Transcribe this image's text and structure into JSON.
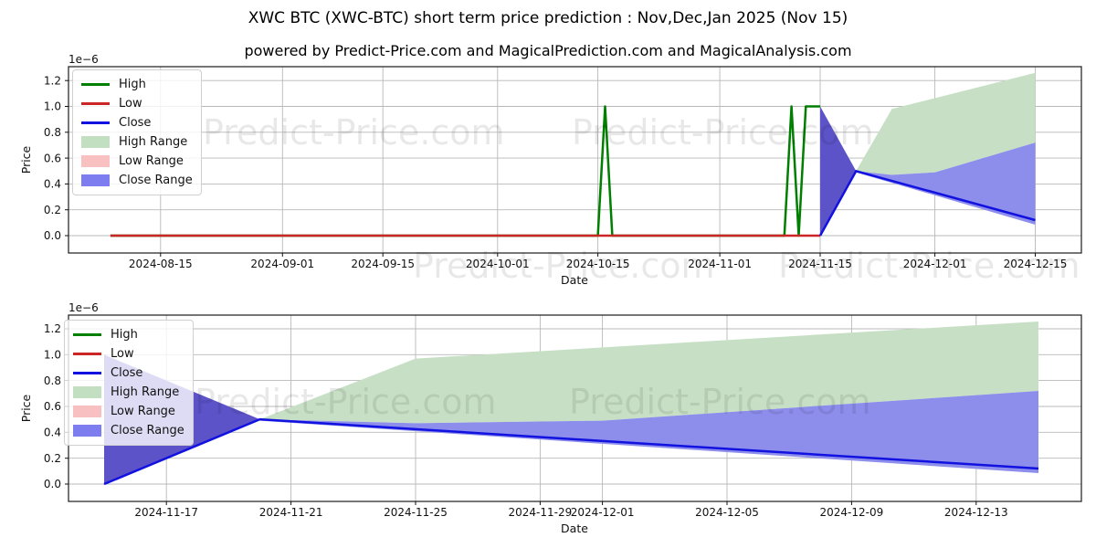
{
  "header": {
    "title": "XWC BTC (XWC-BTC) short term price prediction : Nov,Dec,Jan 2025 (Nov 15)",
    "subtitle": "powered by Predict-Price.com and MagicalPrediction.com and MagicalAnalysis.com"
  },
  "watermark_text": "Predict-Price.com",
  "colors": {
    "high_line": "#007f00",
    "low_line": "#cc2525",
    "close_line": "#1212e0",
    "high_range_fill": "#c7e0c5",
    "close_range_fill": "#8d8dec",
    "close_range_converge_fill": "#5c53c9",
    "grid": "#b8b8b8",
    "axis": "#1a1a1a"
  },
  "chart_data": [
    {
      "type": "line",
      "xlabel": "Date",
      "ylabel": "Price",
      "scale_note": "1e−6",
      "ylim": [
        0,
        1.26
      ],
      "grid": true,
      "legend_position": "upper left",
      "ytick_labels": [
        "0.0",
        "0.2",
        "0.4",
        "0.6",
        "0.8",
        "1.0",
        "1.2"
      ],
      "xtick_dates": [
        "2024-08-15",
        "2024-09-01",
        "2024-09-15",
        "2024-10-01",
        "2024-10-15",
        "2024-11-01",
        "2024-11-15",
        "2024-12-01",
        "2024-12-15"
      ],
      "legend": [
        {
          "label": "High",
          "swatch": "line",
          "color": "#007f00"
        },
        {
          "label": "Low",
          "swatch": "line",
          "color": "#cc2525"
        },
        {
          "label": "Close",
          "swatch": "line",
          "color": "#1212e0"
        },
        {
          "label": "High Range",
          "swatch": "patch",
          "color": "#c2dfc2"
        },
        {
          "label": "Low Range",
          "swatch": "patch",
          "color": "#f8c0c0"
        },
        {
          "label": "Close Range",
          "swatch": "patch",
          "color": "#7d7df0"
        }
      ],
      "series": {
        "bands": [
          {
            "name": "High Range",
            "fill": "#c7e0c5",
            "upper": [
              [
                "2024-11-20",
                0.5
              ],
              [
                "2024-11-25",
                0.98
              ],
              [
                "2024-12-15",
                1.26
              ]
            ],
            "lower": [
              [
                "2024-11-20",
                0.5
              ],
              [
                "2024-11-25",
                0.47
              ],
              [
                "2024-12-01",
                0.49
              ],
              [
                "2024-12-15",
                0.72
              ]
            ]
          },
          {
            "name": "Close Range",
            "fill": "#8d8dec",
            "upper": [
              [
                "2024-11-20",
                0.5
              ],
              [
                "2024-11-25",
                0.47
              ],
              [
                "2024-12-01",
                0.49
              ],
              [
                "2024-12-15",
                0.72
              ]
            ],
            "lower": [
              [
                "2024-11-20",
                0.49
              ],
              [
                "2024-12-15",
                0.085
              ]
            ]
          }
        ],
        "polygons": [
          {
            "name": "Close Range convergence",
            "fill": "#5c53c9",
            "points": [
              [
                "2024-11-15",
                1.0
              ],
              [
                "2024-11-20",
                0.5
              ],
              [
                "2024-11-15",
                0.0
              ]
            ]
          }
        ],
        "lines": [
          {
            "name": "High",
            "color": "#007f00",
            "points": [
              [
                "2024-08-08",
                0
              ],
              [
                "2024-10-15",
                0
              ],
              [
                "2024-10-16",
                1.0
              ],
              [
                "2024-10-17",
                0
              ],
              [
                "2024-11-10",
                0
              ],
              [
                "2024-11-11",
                1.0
              ],
              [
                "2024-11-12",
                0
              ],
              [
                "2024-11-13",
                1.0
              ],
              [
                "2024-11-15",
                1.0
              ]
            ]
          },
          {
            "name": "Low",
            "color": "#cc2525",
            "points": [
              [
                "2024-08-08",
                0
              ],
              [
                "2024-11-15",
                0
              ]
            ]
          },
          {
            "name": "Close",
            "color": "#1212e0",
            "points": [
              [
                "2024-11-15",
                0
              ],
              [
                "2024-11-20",
                0.5
              ],
              [
                "2024-12-15",
                0.12
              ]
            ]
          }
        ]
      }
    },
    {
      "type": "line",
      "xlabel": "Date",
      "ylabel": "Price",
      "scale_note": "1e−6",
      "ylim": [
        0,
        1.26
      ],
      "grid": true,
      "legend_position": "upper left",
      "ytick_labels": [
        "0.0",
        "0.2",
        "0.4",
        "0.6",
        "0.8",
        "1.0",
        "1.2"
      ],
      "xtick_dates": [
        "2024-11-17",
        "2024-11-21",
        "2024-11-25",
        "2024-11-29",
        "2024-12-01",
        "2024-12-05",
        "2024-12-09",
        "2024-12-13"
      ],
      "legend": [
        {
          "label": "High",
          "swatch": "line",
          "color": "#007f00"
        },
        {
          "label": "Low",
          "swatch": "line",
          "color": "#cc2525"
        },
        {
          "label": "Close",
          "swatch": "line",
          "color": "#1212e0"
        },
        {
          "label": "High Range",
          "swatch": "patch",
          "color": "#c2dfc2"
        },
        {
          "label": "Low Range",
          "swatch": "patch",
          "color": "#f8c0c0"
        },
        {
          "label": "Close Range",
          "swatch": "patch",
          "color": "#7d7df0"
        }
      ],
      "series": {
        "bands": [
          {
            "name": "High Range",
            "fill": "#c7e0c5",
            "upper": [
              [
                "2024-11-20",
                0.5
              ],
              [
                "2024-11-25",
                0.97
              ],
              [
                "2024-12-15",
                1.256
              ]
            ],
            "lower": [
              [
                "2024-11-20",
                0.5
              ],
              [
                "2024-11-25",
                0.47
              ],
              [
                "2024-12-01",
                0.49
              ],
              [
                "2024-12-15",
                0.72
              ]
            ]
          },
          {
            "name": "Close Range",
            "fill": "#8d8dec",
            "upper": [
              [
                "2024-11-20",
                0.5
              ],
              [
                "2024-11-25",
                0.47
              ],
              [
                "2024-12-01",
                0.49
              ],
              [
                "2024-12-15",
                0.72
              ]
            ],
            "lower": [
              [
                "2024-11-20",
                0.49
              ],
              [
                "2024-12-15",
                0.085
              ]
            ]
          }
        ],
        "polygons": [
          {
            "name": "Close Range convergence",
            "fill": "#5c53c9",
            "points": [
              [
                "2024-11-15",
                1.0
              ],
              [
                "2024-11-20",
                0.5
              ],
              [
                "2024-11-15",
                0.0
              ]
            ]
          }
        ],
        "lines": [
          {
            "name": "Close",
            "color": "#1212e0",
            "points": [
              [
                "2024-11-15",
                0
              ],
              [
                "2024-11-20",
                0.5
              ],
              [
                "2024-12-15",
                0.12
              ]
            ]
          }
        ]
      }
    }
  ]
}
